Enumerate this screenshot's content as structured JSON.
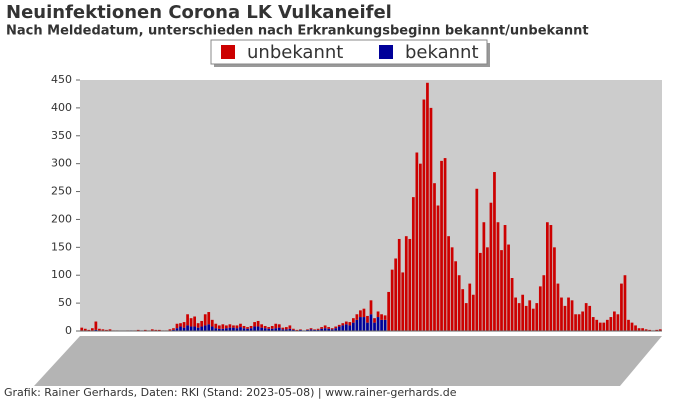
{
  "chart_data": {
    "type": "bar",
    "title": "Neuinfektionen Corona LK Vulkaneifel",
    "subtitle": "Nach Meldedatum, unterschieden nach Erkrankungsbeginn bekannt/unbekannt",
    "footer": "Grafik: Rainer Gerhards, Daten: RKI (Stand: 2023-05-08) | www.rainer-gerhards.de",
    "stacked": true,
    "ylim": [
      0,
      450
    ],
    "yticks": [
      0,
      50,
      100,
      150,
      200,
      250,
      300,
      350,
      400,
      450
    ],
    "grid": false,
    "series": [
      {
        "name": "unbekannt",
        "color": "#cc0000",
        "values": [
          5,
          3,
          2,
          4,
          15,
          3,
          2,
          1,
          2,
          1,
          1,
          0,
          0,
          1,
          0,
          1,
          1,
          0,
          1,
          1,
          2,
          1,
          2,
          1,
          1,
          2,
          3,
          8,
          6,
          10,
          20,
          15,
          18,
          8,
          10,
          20,
          22,
          12,
          8,
          6,
          8,
          5,
          6,
          4,
          5,
          6,
          4,
          3,
          4,
          8,
          10,
          6,
          4,
          3,
          5,
          8,
          6,
          3,
          4,
          6,
          2,
          1,
          1,
          0,
          1,
          2,
          1,
          2,
          3,
          5,
          3,
          2,
          3,
          3,
          4,
          5,
          6,
          8,
          10,
          12,
          15,
          12,
          25,
          8,
          10,
          10,
          8,
          70,
          110,
          130,
          165,
          105,
          170,
          165,
          240,
          320,
          300,
          415,
          445,
          400,
          265,
          225,
          305,
          310,
          170,
          150,
          125,
          100,
          75,
          50,
          85,
          65,
          255,
          140,
          195,
          150,
          230,
          285,
          195,
          145,
          190,
          155,
          95,
          60,
          50,
          65,
          45,
          55,
          40,
          50,
          80,
          100,
          195,
          190,
          150,
          85,
          60,
          45,
          60,
          55,
          30,
          30,
          35,
          50,
          45,
          25,
          20,
          15,
          15,
          20,
          25,
          35,
          30,
          85,
          100,
          20,
          15,
          10,
          5,
          5,
          3,
          2,
          1,
          2,
          3
        ]
      },
      {
        "name": "bekannt",
        "color": "#000099",
        "values": [
          1,
          1,
          0,
          1,
          2,
          1,
          1,
          1,
          1,
          0,
          0,
          0,
          0,
          0,
          1,
          0,
          1,
          1,
          1,
          0,
          1,
          1,
          0,
          0,
          0,
          1,
          2,
          5,
          8,
          6,
          10,
          8,
          8,
          6,
          8,
          10,
          12,
          8,
          5,
          4,
          4,
          5,
          6,
          6,
          5,
          7,
          5,
          4,
          5,
          8,
          8,
          6,
          5,
          4,
          4,
          5,
          6,
          3,
          3,
          4,
          2,
          1,
          2,
          1,
          2,
          3,
          2,
          2,
          4,
          5,
          4,
          3,
          5,
          8,
          10,
          12,
          10,
          15,
          20,
          25,
          25,
          15,
          30,
          15,
          25,
          20,
          20,
          0,
          0,
          0,
          0,
          0,
          0,
          0,
          0,
          0,
          0,
          0,
          0,
          0,
          0,
          0,
          0,
          0,
          0,
          0,
          0,
          0,
          0,
          0,
          0,
          0,
          0,
          0,
          0,
          0,
          0,
          0,
          0,
          0,
          0,
          0,
          0,
          0,
          0,
          0,
          0,
          0,
          0,
          0,
          0,
          0,
          0,
          0,
          0,
          0,
          0,
          0,
          0,
          0,
          0,
          0,
          0,
          0,
          0,
          0,
          0,
          0,
          0,
          0,
          0,
          0,
          0,
          0,
          0,
          0,
          0,
          0,
          0,
          0,
          0,
          0,
          0,
          0,
          0
        ]
      }
    ]
  }
}
